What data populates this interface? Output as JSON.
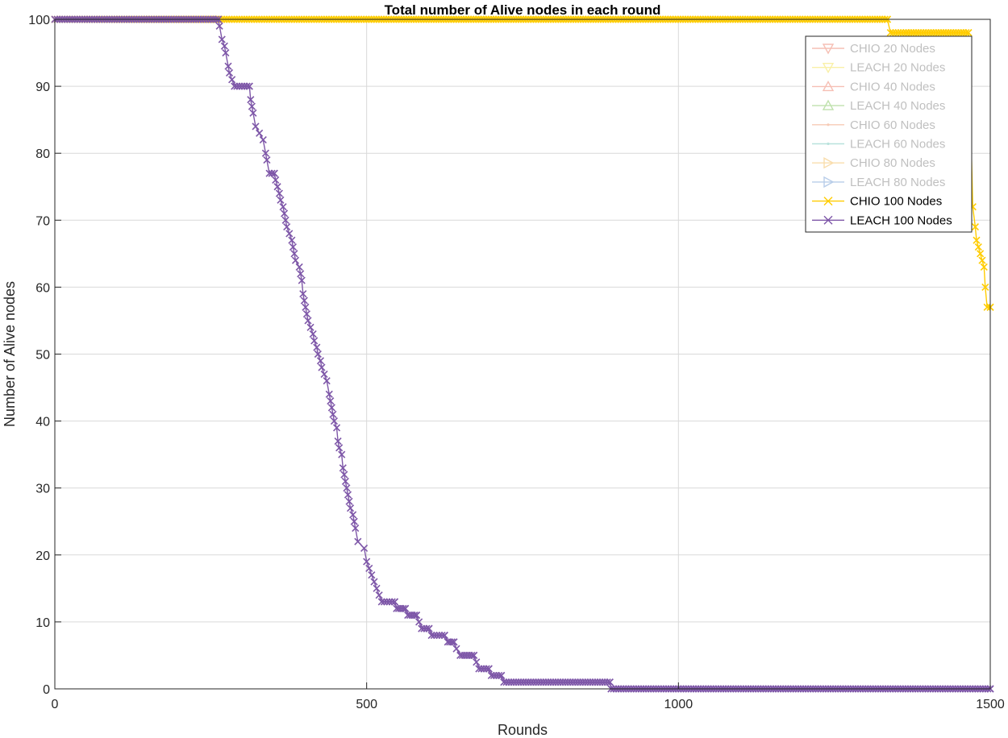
{
  "chart_data": {
    "type": "line",
    "title": "Total number of Alive nodes in each round",
    "xlabel": "Rounds",
    "ylabel": "Number of Alive nodes",
    "xlim": [
      0,
      1500
    ],
    "ylim": [
      0,
      100
    ],
    "xticks": [
      0,
      500,
      1000,
      1500
    ],
    "xtick_labels": [
      "0",
      "500",
      "1000",
      "1500"
    ],
    "yticks": [
      0,
      10,
      20,
      30,
      40,
      50,
      60,
      70,
      80,
      90,
      100
    ],
    "ytick_labels": [
      "0",
      "10",
      "20",
      "30",
      "40",
      "50",
      "60",
      "70",
      "80",
      "90",
      "100"
    ],
    "grid": true,
    "legend_position": "top-right",
    "series": [
      {
        "name": "CHIO 20 Nodes",
        "color": "#F08C78",
        "marker": "triangle-down",
        "dimmed": true,
        "points": []
      },
      {
        "name": "LEACH 20 Nodes",
        "color": "#F5E460",
        "marker": "triangle-down",
        "dimmed": true,
        "points": []
      },
      {
        "name": "CHIO 40 Nodes",
        "color": "#F08C78",
        "marker": "triangle-up",
        "dimmed": true,
        "points": []
      },
      {
        "name": "LEACH 40 Nodes",
        "color": "#8CC96A",
        "marker": "triangle-up",
        "dimmed": true,
        "points": []
      },
      {
        "name": "CHIO 60 Nodes",
        "color": "#F0A07A",
        "marker": "dot",
        "dimmed": true,
        "points": []
      },
      {
        "name": "LEACH 60 Nodes",
        "color": "#7FCBC0",
        "marker": "dot",
        "dimmed": true,
        "points": []
      },
      {
        "name": "CHIO 80 Nodes",
        "color": "#F5C26A",
        "marker": "triangle-right",
        "dimmed": true,
        "points": []
      },
      {
        "name": "LEACH 80 Nodes",
        "color": "#7FA6D8",
        "marker": "triangle-right",
        "dimmed": true,
        "points": []
      },
      {
        "name": "CHIO 100 Nodes",
        "color": "#FFCC00",
        "marker": "x",
        "dimmed": false,
        "points": [
          [
            0,
            100
          ],
          [
            1335,
            100
          ],
          [
            1340,
            98
          ],
          [
            1365,
            98
          ],
          [
            1465,
            98
          ],
          [
            1472,
            72
          ],
          [
            1476,
            69
          ],
          [
            1478,
            67
          ],
          [
            1481,
            66
          ],
          [
            1484,
            65
          ],
          [
            1487,
            64
          ],
          [
            1490,
            63
          ],
          [
            1492,
            60
          ],
          [
            1495,
            57
          ],
          [
            1500,
            57
          ]
        ]
      },
      {
        "name": "LEACH 100 Nodes",
        "color": "#7E57A8",
        "marker": "x",
        "dimmed": false,
        "points": [
          [
            0,
            100
          ],
          [
            262,
            100
          ],
          [
            264,
            99
          ],
          [
            268,
            97
          ],
          [
            272,
            96
          ],
          [
            274,
            95
          ],
          [
            278,
            93
          ],
          [
            280,
            92
          ],
          [
            284,
            91
          ],
          [
            288,
            90
          ],
          [
            312,
            90
          ],
          [
            314,
            88
          ],
          [
            316,
            87
          ],
          [
            318,
            86
          ],
          [
            322,
            84
          ],
          [
            328,
            83
          ],
          [
            334,
            82
          ],
          [
            338,
            80
          ],
          [
            340,
            79
          ],
          [
            344,
            77
          ],
          [
            352,
            77
          ],
          [
            354,
            76
          ],
          [
            357,
            75
          ],
          [
            360,
            74
          ],
          [
            362,
            73
          ],
          [
            366,
            72
          ],
          [
            368,
            71
          ],
          [
            370,
            70
          ],
          [
            372,
            69
          ],
          [
            376,
            68
          ],
          [
            380,
            67
          ],
          [
            382,
            66
          ],
          [
            384,
            65
          ],
          [
            386,
            64
          ],
          [
            392,
            63
          ],
          [
            394,
            62
          ],
          [
            396,
            61
          ],
          [
            398,
            59
          ],
          [
            400,
            58
          ],
          [
            402,
            57
          ],
          [
            404,
            56
          ],
          [
            406,
            55
          ],
          [
            410,
            54
          ],
          [
            414,
            53
          ],
          [
            416,
            52
          ],
          [
            420,
            51
          ],
          [
            422,
            50
          ],
          [
            426,
            49
          ],
          [
            428,
            48
          ],
          [
            432,
            47
          ],
          [
            436,
            46
          ],
          [
            440,
            44
          ],
          [
            442,
            43
          ],
          [
            444,
            42
          ],
          [
            446,
            41
          ],
          [
            448,
            40
          ],
          [
            452,
            39
          ],
          [
            454,
            37
          ],
          [
            456,
            36
          ],
          [
            460,
            35
          ],
          [
            462,
            33
          ],
          [
            464,
            32
          ],
          [
            466,
            31
          ],
          [
            468,
            30
          ],
          [
            470,
            29
          ],
          [
            472,
            28
          ],
          [
            474,
            27
          ],
          [
            478,
            26
          ],
          [
            480,
            25
          ],
          [
            482,
            24
          ],
          [
            486,
            22
          ],
          [
            496,
            21
          ],
          [
            500,
            19
          ],
          [
            504,
            18
          ],
          [
            508,
            17
          ],
          [
            512,
            16
          ],
          [
            516,
            15
          ],
          [
            520,
            14
          ],
          [
            524,
            13
          ],
          [
            545,
            13
          ],
          [
            548,
            12
          ],
          [
            562,
            12
          ],
          [
            566,
            11
          ],
          [
            580,
            11
          ],
          [
            584,
            10
          ],
          [
            588,
            9
          ],
          [
            600,
            9
          ],
          [
            604,
            8
          ],
          [
            625,
            8
          ],
          [
            630,
            7
          ],
          [
            640,
            7
          ],
          [
            644,
            6
          ],
          [
            650,
            5
          ],
          [
            672,
            5
          ],
          [
            676,
            4
          ],
          [
            680,
            3
          ],
          [
            696,
            3
          ],
          [
            700,
            2
          ],
          [
            716,
            2
          ],
          [
            720,
            1
          ],
          [
            890,
            1
          ],
          [
            892,
            0
          ],
          [
            1500,
            0
          ]
        ]
      }
    ]
  }
}
